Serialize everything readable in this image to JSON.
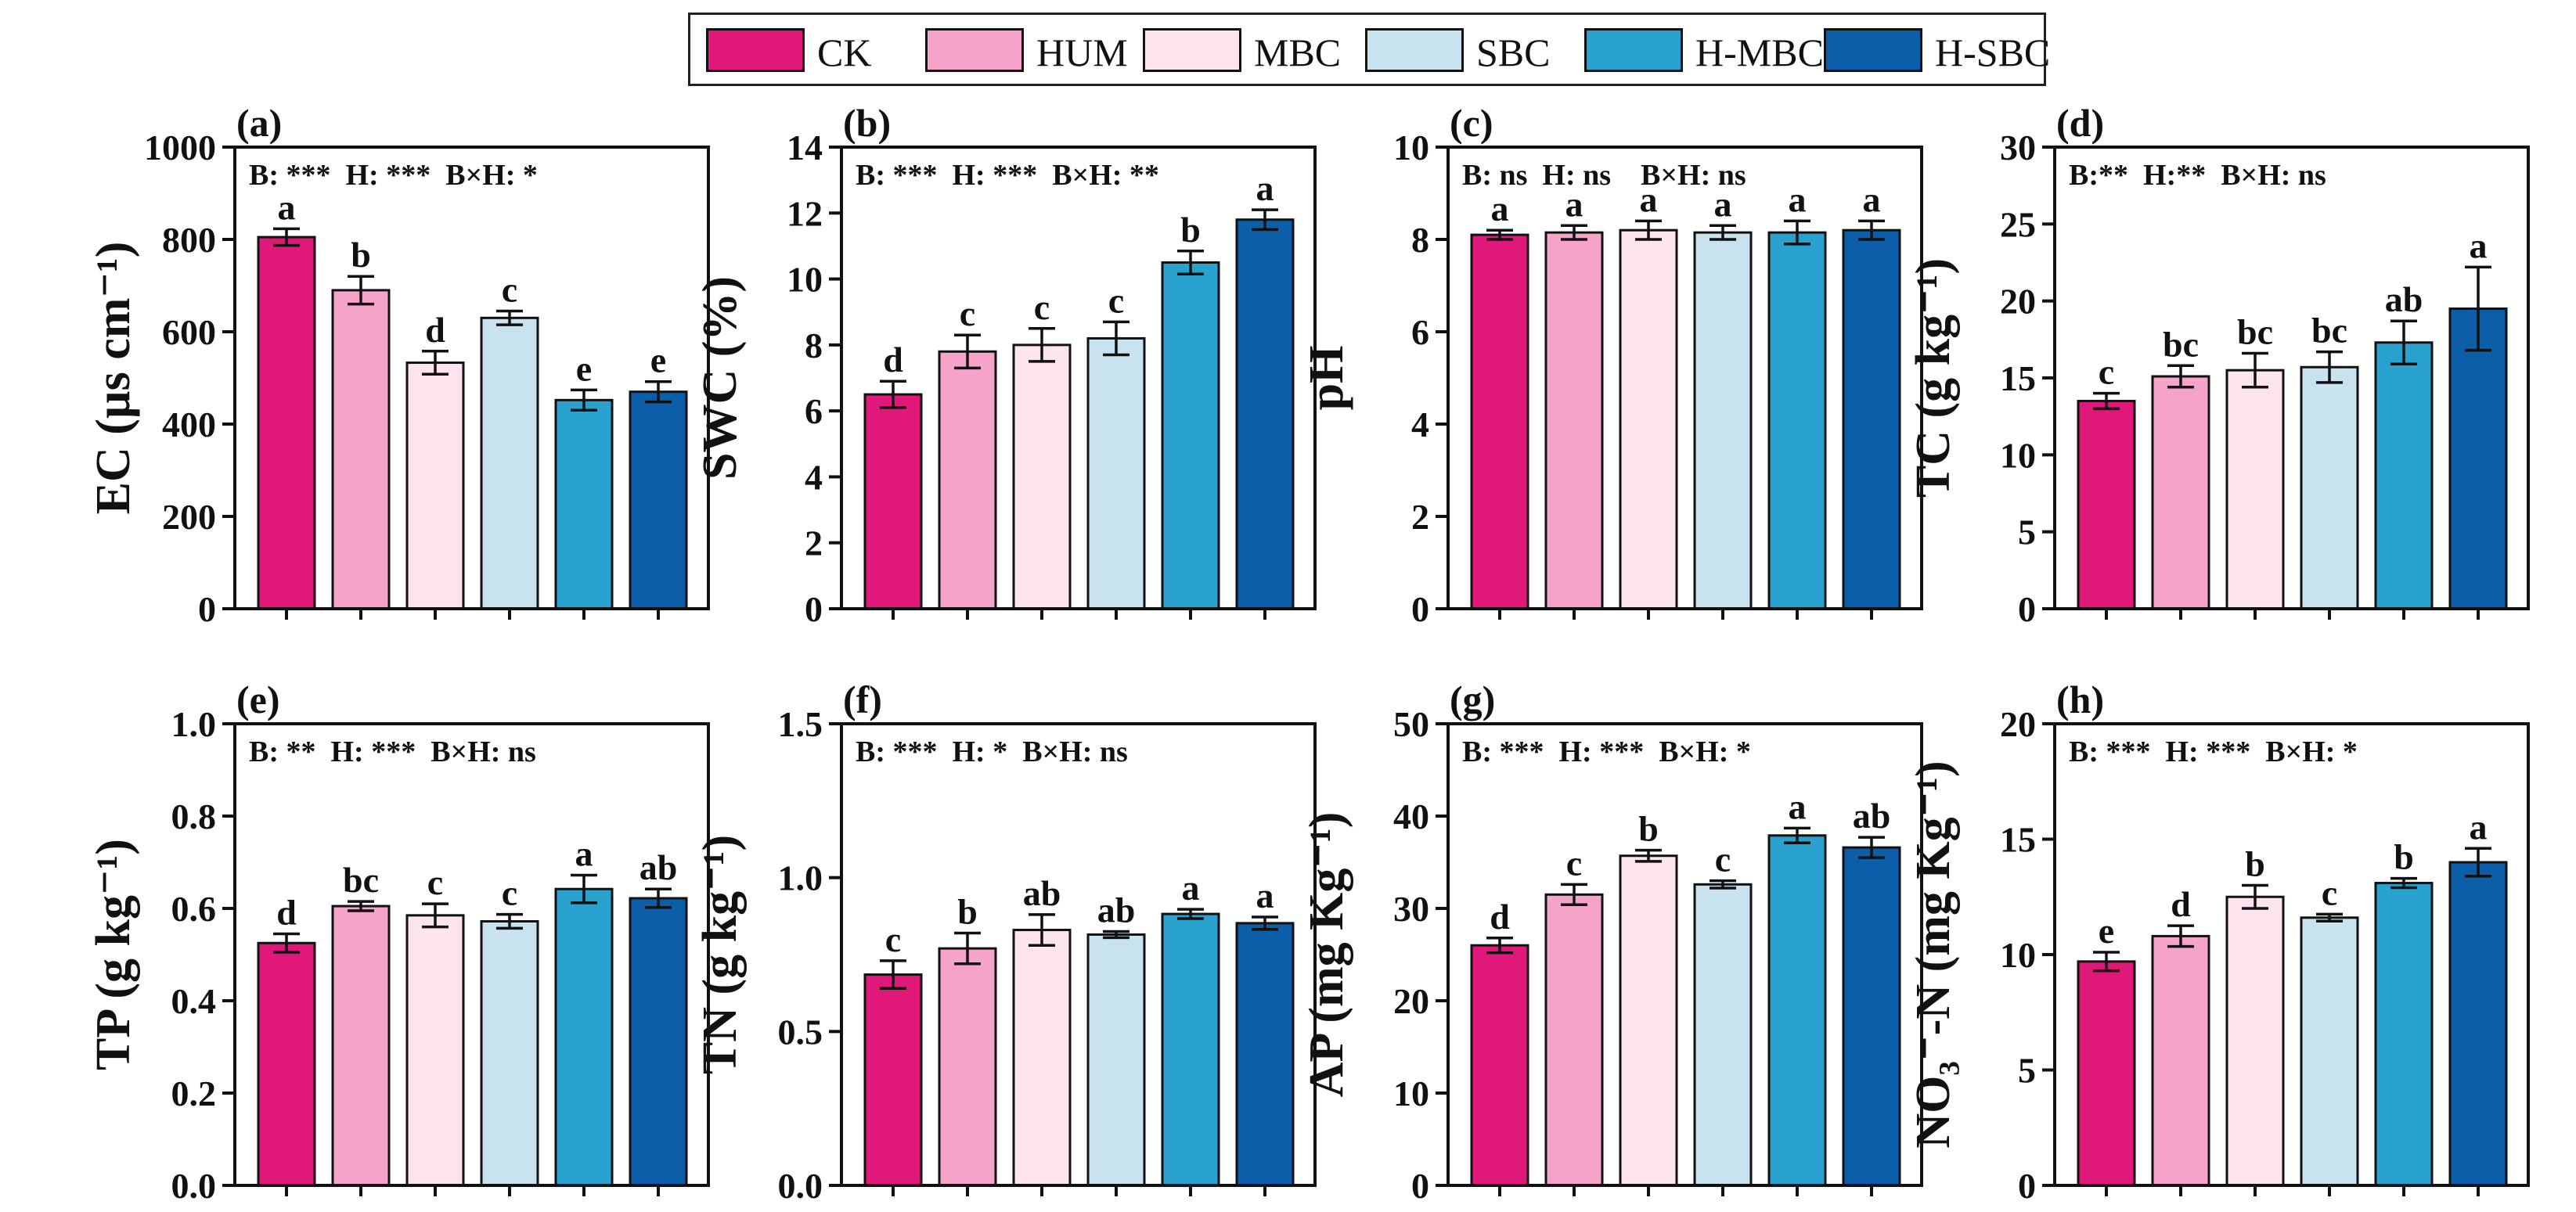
{
  "legend": {
    "items": [
      {
        "label": "CK",
        "color": "#e0187a"
      },
      {
        "label": "HUM",
        "color": "#f5a3c8"
      },
      {
        "label": "MBC",
        "color": "#fde4ee"
      },
      {
        "label": "SBC",
        "color": "#c8e2ef"
      },
      {
        "label": "H-MBC",
        "color": "#2aa2cf"
      },
      {
        "label": "H-SBC",
        "color": "#0d5ea8"
      }
    ]
  },
  "chart_data": [
    {
      "type": "bar",
      "panel": "(a)",
      "ylabel": "EC (µs cm⁻¹)",
      "ylim": [
        0,
        1000
      ],
      "yticks": [
        "0",
        "200",
        "400",
        "600",
        "800",
        "1000"
      ],
      "stats": "B: ***  H: ***  B×H: *",
      "categories": [
        "CK",
        "HUM",
        "MBC",
        "SBC",
        "H-MBC",
        "H-SBC"
      ],
      "values": [
        805,
        690,
        533,
        630,
        452,
        470
      ],
      "errors": [
        18,
        30,
        25,
        15,
        22,
        22
      ],
      "letters": [
        "a",
        "b",
        "d",
        "c",
        "e",
        "e"
      ]
    },
    {
      "type": "bar",
      "panel": "(b)",
      "ylabel": "SWC (%)",
      "ylim": [
        0,
        14
      ],
      "yticks": [
        "0",
        "2",
        "4",
        "6",
        "8",
        "10",
        "12",
        "14"
      ],
      "stats": "B: ***  H: ***  B×H: **",
      "categories": [
        "CK",
        "HUM",
        "MBC",
        "SBC",
        "H-MBC",
        "H-SBC"
      ],
      "values": [
        6.5,
        7.8,
        8.0,
        8.2,
        10.5,
        11.8
      ],
      "errors": [
        0.4,
        0.5,
        0.5,
        0.5,
        0.35,
        0.3
      ],
      "letters": [
        "d",
        "c",
        "c",
        "c",
        "b",
        "a"
      ]
    },
    {
      "type": "bar",
      "panel": "(c)",
      "ylabel": "pH",
      "ylim": [
        0,
        10
      ],
      "yticks": [
        "0",
        "2",
        "4",
        "6",
        "8",
        "10"
      ],
      "stats": "B: ns  H: ns    B×H: ns",
      "categories": [
        "CK",
        "HUM",
        "MBC",
        "SBC",
        "H-MBC",
        "H-SBC"
      ],
      "values": [
        8.1,
        8.15,
        8.2,
        8.15,
        8.15,
        8.2
      ],
      "errors": [
        0.1,
        0.15,
        0.2,
        0.15,
        0.25,
        0.2
      ],
      "letters": [
        "a",
        "a",
        "a",
        "a",
        "a",
        "a"
      ]
    },
    {
      "type": "bar",
      "panel": "(d)",
      "ylabel": "TC (g kg⁻¹)",
      "ylim": [
        0,
        30
      ],
      "yticks": [
        "0",
        "5",
        "10",
        "15",
        "20",
        "25",
        "30"
      ],
      "stats": "B:**  H:**  B×H: ns",
      "categories": [
        "CK",
        "HUM",
        "MBC",
        "SBC",
        "H-MBC",
        "H-SBC"
      ],
      "values": [
        13.5,
        15.1,
        15.5,
        15.7,
        17.3,
        19.5
      ],
      "errors": [
        0.5,
        0.7,
        1.1,
        1.0,
        1.4,
        2.7
      ],
      "letters": [
        "c",
        "bc",
        "bc",
        "bc",
        "ab",
        "a"
      ]
    },
    {
      "type": "bar",
      "panel": "(e)",
      "ylabel": "TP (g kg⁻¹)",
      "ylim": [
        0,
        1.0
      ],
      "yticks": [
        "0.0",
        "0.2",
        "0.4",
        "0.6",
        "0.8",
        "1.0"
      ],
      "stats": "B: **  H: ***  B×H: ns",
      "categories": [
        "CK",
        "HUM",
        "MBC",
        "SBC",
        "H-MBC",
        "H-SBC"
      ],
      "values": [
        0.525,
        0.605,
        0.585,
        0.572,
        0.642,
        0.622
      ],
      "errors": [
        0.02,
        0.01,
        0.025,
        0.015,
        0.03,
        0.02
      ],
      "letters": [
        "d",
        "bc",
        "c",
        "c",
        "a",
        "ab"
      ]
    },
    {
      "type": "bar",
      "panel": "(f)",
      "ylabel": "TN (g kg⁻¹)",
      "ylim": [
        0,
        1.5
      ],
      "yticks": [
        "0.0",
        "0.5",
        "1.0",
        "1.5"
      ],
      "stats": "B: ***  H: *  B×H: ns",
      "categories": [
        "CK",
        "HUM",
        "MBC",
        "SBC",
        "H-MBC",
        "H-SBC"
      ],
      "values": [
        0.685,
        0.77,
        0.83,
        0.815,
        0.882,
        0.852
      ],
      "errors": [
        0.045,
        0.05,
        0.05,
        0.01,
        0.015,
        0.02
      ],
      "letters": [
        "c",
        "b",
        "ab",
        "ab",
        "a",
        "a"
      ]
    },
    {
      "type": "bar",
      "panel": "(g)",
      "ylabel": "AP (mg Kg⁻¹)",
      "ylim": [
        0,
        50
      ],
      "yticks": [
        "0",
        "10",
        "20",
        "30",
        "40",
        "50"
      ],
      "stats": "B: ***  H: ***  B×H: *",
      "categories": [
        "CK",
        "HUM",
        "MBC",
        "SBC",
        "H-MBC",
        "H-SBC"
      ],
      "values": [
        26.0,
        31.5,
        35.7,
        32.6,
        37.9,
        36.6
      ],
      "errors": [
        0.8,
        1.1,
        0.6,
        0.4,
        0.8,
        1.1
      ],
      "letters": [
        "d",
        "c",
        "b",
        "c",
        "a",
        "ab"
      ]
    },
    {
      "type": "bar",
      "panel": "(h)",
      "ylabel": "NO₃⁻-N (mg Kg⁻¹)",
      "ylim": [
        0,
        20
      ],
      "yticks": [
        "0",
        "5",
        "10",
        "15",
        "20"
      ],
      "stats": "B: ***  H: ***  B×H: *",
      "categories": [
        "CK",
        "HUM",
        "MBC",
        "SBC",
        "H-MBC",
        "H-SBC"
      ],
      "values": [
        9.7,
        10.8,
        12.5,
        11.6,
        13.1,
        14.0
      ],
      "errors": [
        0.4,
        0.45,
        0.5,
        0.15,
        0.2,
        0.6
      ],
      "letters": [
        "e",
        "d",
        "b",
        "c",
        "b",
        "a"
      ]
    }
  ]
}
